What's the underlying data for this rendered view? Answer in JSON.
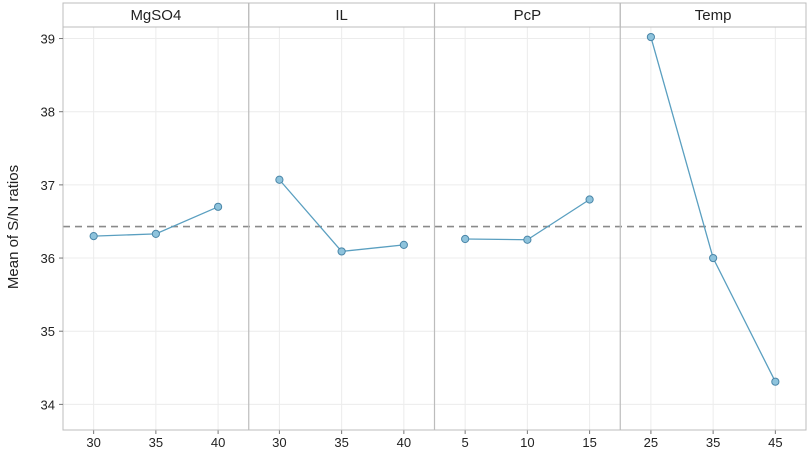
{
  "chart_data": {
    "type": "line",
    "title": "",
    "ylabel": "Mean of S/N ratios",
    "ylim": [
      34,
      39
    ],
    "yticks": [
      34,
      35,
      36,
      37,
      38,
      39
    ],
    "mean_line": 36.43,
    "grid": true,
    "colors": {
      "line": "#5a9fc0",
      "marker_fill": "#8ec3dc",
      "marker_stroke": "#4a86a8",
      "mean_line": "#8a8a8a",
      "panel_header": "#ffffff",
      "panel_border": "#bcbcbc",
      "gridline": "#ececec"
    },
    "panels": [
      {
        "name": "MgSO4",
        "categories": [
          "30",
          "35",
          "40"
        ],
        "values": [
          36.3,
          36.33,
          36.7
        ]
      },
      {
        "name": "IL",
        "categories": [
          "30",
          "35",
          "40"
        ],
        "values": [
          37.07,
          36.09,
          36.18
        ]
      },
      {
        "name": "PcP",
        "categories": [
          "5",
          "10",
          "15"
        ],
        "values": [
          36.26,
          36.25,
          36.8
        ]
      },
      {
        "name": "Temp",
        "categories": [
          "25",
          "35",
          "45"
        ],
        "values": [
          39.02,
          36.0,
          34.31
        ]
      }
    ]
  }
}
